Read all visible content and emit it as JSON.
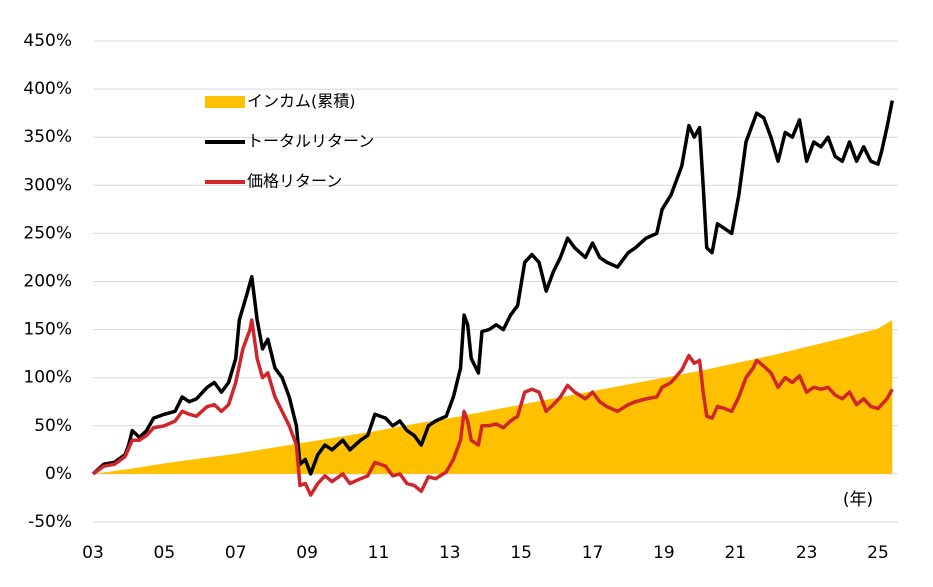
{
  "chart_data": {
    "type": "line",
    "xlim": [
      2003,
      2025.4
    ],
    "xticks": [
      {
        "value": 2003,
        "label": "03"
      },
      {
        "value": 2005,
        "label": "05"
      },
      {
        "value": 2007,
        "label": "07"
      },
      {
        "value": 2009,
        "label": "09"
      },
      {
        "value": 2011,
        "label": "11"
      },
      {
        "value": 2013,
        "label": "13"
      },
      {
        "value": 2015,
        "label": "15"
      },
      {
        "value": 2017,
        "label": "17"
      },
      {
        "value": 2019,
        "label": "19"
      },
      {
        "value": 2021,
        "label": "21"
      },
      {
        "value": 2023,
        "label": "23"
      },
      {
        "value": 2025,
        "label": "25"
      }
    ],
    "ylim": [
      -50,
      450
    ],
    "yticks": [
      {
        "value": -50,
        "label": "-50%"
      },
      {
        "value": 0,
        "label": "0%"
      },
      {
        "value": 50,
        "label": "50%"
      },
      {
        "value": 100,
        "label": "100%"
      },
      {
        "value": 150,
        "label": "150%"
      },
      {
        "value": 200,
        "label": "200%"
      },
      {
        "value": 250,
        "label": "250%"
      },
      {
        "value": 300,
        "label": "300%"
      },
      {
        "value": 350,
        "label": "350%"
      },
      {
        "value": 400,
        "label": "400%"
      },
      {
        "value": 450,
        "label": "450%"
      }
    ],
    "grid": true,
    "legend": "upper-left",
    "x_unit_label": "(年)",
    "series": [
      {
        "name": "インカム(累積)",
        "kind": "area",
        "color": "#ffc000",
        "x": [
          2003,
          2004,
          2005,
          2006,
          2007,
          2008,
          2009,
          2010,
          2011,
          2012,
          2013,
          2014,
          2015,
          2016,
          2017,
          2018,
          2019,
          2020,
          2021,
          2022,
          2023,
          2024,
          2025,
          2025.4
        ],
        "values": [
          0,
          5,
          11,
          16,
          21,
          27,
          33,
          39,
          45,
          52,
          58,
          65,
          72,
          79,
          86,
          93,
          100,
          107,
          115,
          123,
          132,
          141,
          151,
          160
        ]
      },
      {
        "name": "トータルリターン",
        "kind": "line",
        "color": "#000000",
        "x": [
          2003.0,
          2003.3,
          2003.6,
          2003.9,
          2004.0,
          2004.1,
          2004.3,
          2004.5,
          2004.7,
          2005.0,
          2005.3,
          2005.5,
          2005.7,
          2005.9,
          2006.2,
          2006.4,
          2006.6,
          2006.8,
          2007.0,
          2007.1,
          2007.3,
          2007.45,
          2007.6,
          2007.75,
          2007.9,
          2008.1,
          2008.3,
          2008.5,
          2008.7,
          2008.8,
          2008.95,
          2009.1,
          2009.3,
          2009.5,
          2009.7,
          2010.0,
          2010.2,
          2010.5,
          2010.7,
          2010.9,
          2011.2,
          2011.4,
          2011.6,
          2011.8,
          2012.0,
          2012.2,
          2012.4,
          2012.6,
          2012.9,
          2013.1,
          2013.3,
          2013.4,
          2013.5,
          2013.6,
          2013.8,
          2013.9,
          2014.1,
          2014.3,
          2014.5,
          2014.7,
          2014.9,
          2015.1,
          2015.3,
          2015.5,
          2015.7,
          2015.9,
          2016.1,
          2016.3,
          2016.5,
          2016.8,
          2017.0,
          2017.2,
          2017.4,
          2017.7,
          2018.0,
          2018.2,
          2018.5,
          2018.8,
          2018.95,
          2019.2,
          2019.5,
          2019.7,
          2019.85,
          2020.0,
          2020.1,
          2020.2,
          2020.35,
          2020.5,
          2020.7,
          2020.9,
          2021.1,
          2021.3,
          2021.5,
          2021.6,
          2021.8,
          2022.0,
          2022.2,
          2022.4,
          2022.6,
          2022.8,
          2023.0,
          2023.2,
          2023.4,
          2023.6,
          2023.8,
          2024.0,
          2024.2,
          2024.4,
          2024.6,
          2024.8,
          2025.0,
          2025.1,
          2025.25,
          2025.4
        ],
        "values": [
          0,
          10,
          12,
          20,
          30,
          45,
          38,
          45,
          58,
          62,
          65,
          80,
          75,
          78,
          90,
          95,
          85,
          95,
          120,
          160,
          185,
          205,
          160,
          130,
          140,
          110,
          100,
          80,
          50,
          10,
          15,
          0,
          20,
          30,
          25,
          35,
          25,
          35,
          40,
          62,
          58,
          50,
          55,
          45,
          40,
          30,
          50,
          55,
          60,
          80,
          110,
          165,
          155,
          120,
          105,
          148,
          150,
          155,
          150,
          165,
          175,
          220,
          228,
          220,
          190,
          210,
          225,
          245,
          235,
          225,
          240,
          225,
          220,
          215,
          230,
          235,
          245,
          250,
          275,
          290,
          320,
          362,
          350,
          360,
          300,
          235,
          230,
          260,
          255,
          250,
          290,
          345,
          365,
          375,
          370,
          350,
          325,
          355,
          350,
          368,
          325,
          345,
          340,
          350,
          330,
          325,
          345,
          325,
          340,
          325,
          322,
          335,
          360,
          388
        ]
      },
      {
        "name": "価格リターン",
        "kind": "line",
        "color": "#d0262b",
        "x": [
          2003.0,
          2003.3,
          2003.6,
          2003.9,
          2004.1,
          2004.3,
          2004.5,
          2004.7,
          2005.0,
          2005.3,
          2005.5,
          2005.7,
          2005.9,
          2006.2,
          2006.4,
          2006.6,
          2006.8,
          2007.0,
          2007.2,
          2007.4,
          2007.45,
          2007.6,
          2007.75,
          2007.9,
          2008.1,
          2008.3,
          2008.5,
          2008.7,
          2008.8,
          2008.95,
          2009.1,
          2009.3,
          2009.5,
          2009.7,
          2010.0,
          2010.2,
          2010.5,
          2010.7,
          2010.9,
          2011.2,
          2011.4,
          2011.6,
          2011.8,
          2012.0,
          2012.2,
          2012.4,
          2012.6,
          2012.9,
          2013.1,
          2013.3,
          2013.4,
          2013.5,
          2013.6,
          2013.8,
          2013.9,
          2014.1,
          2014.3,
          2014.5,
          2014.7,
          2014.9,
          2015.1,
          2015.3,
          2015.5,
          2015.7,
          2015.9,
          2016.1,
          2016.3,
          2016.5,
          2016.8,
          2017.0,
          2017.2,
          2017.4,
          2017.7,
          2018.0,
          2018.2,
          2018.5,
          2018.8,
          2018.95,
          2019.2,
          2019.5,
          2019.7,
          2019.85,
          2020.0,
          2020.1,
          2020.2,
          2020.35,
          2020.5,
          2020.7,
          2020.9,
          2021.1,
          2021.3,
          2021.5,
          2021.6,
          2021.8,
          2022.0,
          2022.2,
          2022.4,
          2022.6,
          2022.8,
          2023.0,
          2023.2,
          2023.4,
          2023.6,
          2023.8,
          2024.0,
          2024.2,
          2024.4,
          2024.6,
          2024.8,
          2025.0,
          2025.1,
          2025.25,
          2025.4
        ],
        "values": [
          0,
          8,
          10,
          18,
          35,
          35,
          40,
          48,
          50,
          55,
          65,
          62,
          60,
          70,
          72,
          65,
          72,
          95,
          130,
          150,
          160,
          120,
          100,
          105,
          80,
          65,
          50,
          30,
          -12,
          -10,
          -22,
          -10,
          -2,
          -8,
          0,
          -10,
          -5,
          -2,
          12,
          8,
          -2,
          0,
          -10,
          -12,
          -18,
          -3,
          -5,
          2,
          15,
          35,
          65,
          55,
          35,
          30,
          50,
          50,
          52,
          48,
          55,
          60,
          85,
          88,
          85,
          65,
          72,
          80,
          92,
          85,
          78,
          85,
          75,
          70,
          65,
          72,
          75,
          78,
          80,
          90,
          95,
          108,
          123,
          115,
          118,
          85,
          60,
          58,
          70,
          68,
          65,
          80,
          100,
          110,
          118,
          112,
          105,
          90,
          100,
          95,
          102,
          85,
          90,
          88,
          90,
          82,
          78,
          85,
          72,
          78,
          70,
          68,
          72,
          78,
          88
        ]
      }
    ]
  }
}
